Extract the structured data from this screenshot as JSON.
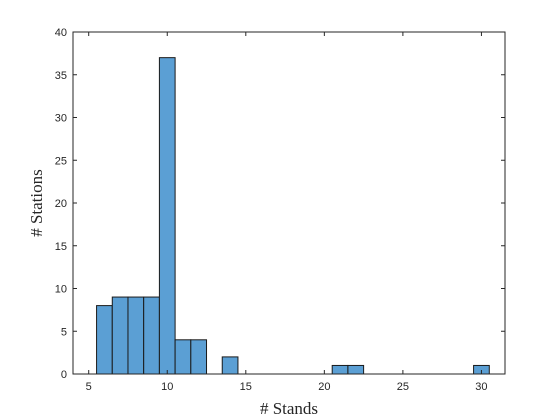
{
  "chart_data": {
    "type": "bar",
    "title": "",
    "xlabel": "# Stands",
    "ylabel": "# Stations",
    "xlim": [
      4,
      31.5
    ],
    "ylim": [
      0,
      40
    ],
    "xticks": [
      5,
      10,
      15,
      20,
      25,
      30
    ],
    "yticks": [
      0,
      5,
      10,
      15,
      20,
      25,
      30,
      35,
      40
    ],
    "bin_width": 1,
    "grid": false,
    "legend": "none",
    "bar_color": "#5b9fd4",
    "bins": [
      {
        "x": 6,
        "count": 8
      },
      {
        "x": 7,
        "count": 9
      },
      {
        "x": 8,
        "count": 9
      },
      {
        "x": 9,
        "count": 9
      },
      {
        "x": 10,
        "count": 37
      },
      {
        "x": 11,
        "count": 4
      },
      {
        "x": 12,
        "count": 4
      },
      {
        "x": 14,
        "count": 2
      },
      {
        "x": 21,
        "count": 1
      },
      {
        "x": 22,
        "count": 1
      },
      {
        "x": 30,
        "count": 1
      }
    ]
  }
}
